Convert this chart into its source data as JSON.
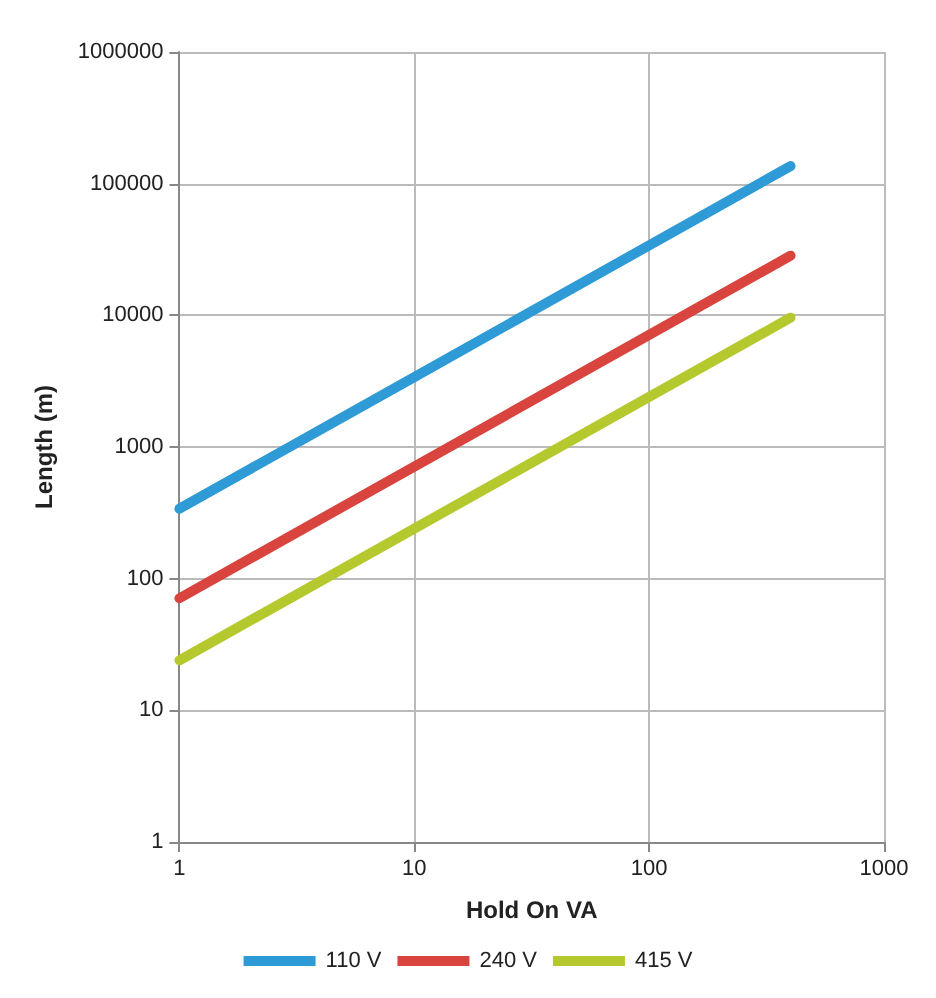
{
  "chart_data": {
    "type": "line",
    "xlabel": "Hold On VA",
    "ylabel": "Length (m)",
    "log": "xy",
    "grid": true,
    "legend": "bottom",
    "marker": "none",
    "line_style": "solid",
    "x": [
      1,
      10,
      100,
      400
    ],
    "xlim": [
      1,
      1000
    ],
    "xticks": [
      1,
      10,
      100,
      1000
    ],
    "ylim": [
      1,
      1000000
    ],
    "yticks": [
      1,
      10,
      100,
      1000,
      10000,
      100000,
      1000000
    ],
    "series": [
      {
        "name": "110 V",
        "color": "#2e9bd6",
        "values": [
          340,
          3400,
          34000,
          136000
        ]
      },
      {
        "name": "240 V",
        "color": "#d9443f",
        "values": [
          71,
          710,
          7100,
          28400
        ]
      },
      {
        "name": "415 V",
        "color": "#b5c92f",
        "values": [
          24,
          240,
          2400,
          9600
        ]
      }
    ]
  }
}
